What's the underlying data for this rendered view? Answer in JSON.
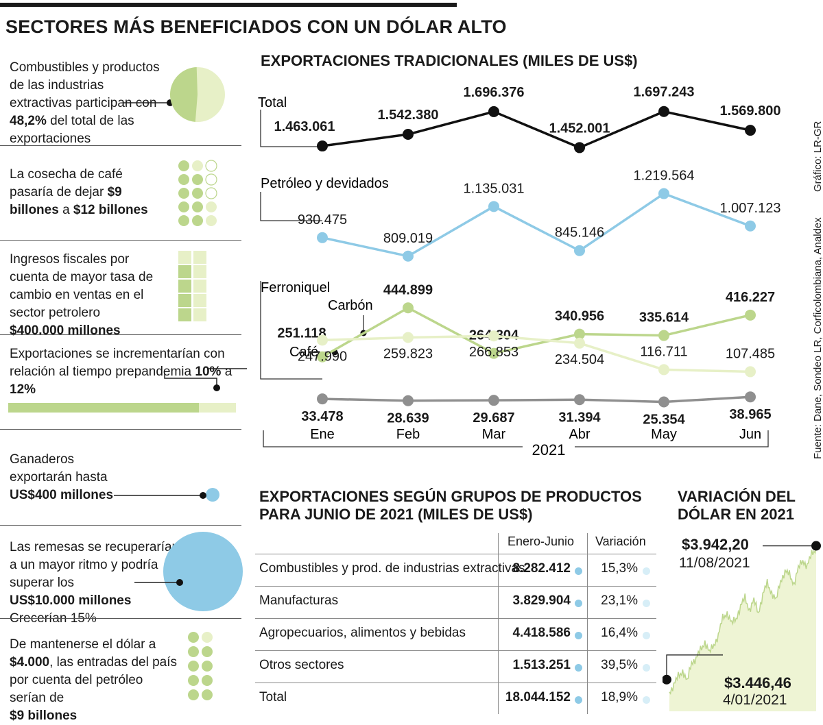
{
  "header": {
    "title": "SECTORES MÁS BENEFICIADOS CON UN DÓLAR ALTO"
  },
  "sidebar": {
    "s1": {
      "pre": "Combustibles y productos de las industrias extractivas participan con ",
      "bold": "48,2%",
      "post": " del total de las exportaciones",
      "share_pct": 48.2
    },
    "s2": {
      "pre": "La cosecha de café pasaría de dejar ",
      "bold1": "$9 billones",
      "mid": " a ",
      "bold2": "$12 billones"
    },
    "s3": {
      "pre": "Ingresos fiscales por cuenta de mayor tasa de cambio en ventas en el sector petrolero",
      "bold": "$400.000 millones"
    },
    "s4": {
      "pre": "Exportaciones se incrementarían con relación al tiempo prepandemia ",
      "bold1": "10%",
      "mid": " a ",
      "bold2": "12%"
    },
    "s5": {
      "pre": "Ganaderos exportarán hasta",
      "bold": "US$400 millones"
    },
    "s6": {
      "pre": "Las remesas se recuperarían a un mayor ritmo y podría superar los",
      "bold": "US$10.000 millones",
      "post": "Crecerían 15%"
    },
    "s7": {
      "pre1": "De mantenerse el dólar a ",
      "bold1": "$4.000",
      "pre2": ", las entradas del país por cuenta del petróleo serían de",
      "bold2": "$9 billones"
    }
  },
  "chart_data": [
    {
      "type": "line",
      "title": "EXPORTACIONES TRADICIONALES (MILES DE US$)",
      "categories": [
        "Ene",
        "Feb",
        "Mar",
        "Abr",
        "May",
        "Jun"
      ],
      "xlabel": "2021",
      "series": [
        {
          "name": "Total",
          "values": [
            1463061,
            1542380,
            1696376,
            1452001,
            1697243,
            1569800
          ],
          "labels": [
            "1.463.061",
            "1.542.380",
            "1.696.376",
            "1.452.001",
            "1.697.243",
            "1.569.800"
          ],
          "color": "#111111"
        },
        {
          "name": "Petróleo y devidados",
          "values": [
            930475,
            809019,
            1135031,
            845146,
            1219564,
            1007123
          ],
          "labels": [
            "930.475",
            "809.019",
            "1.135.031",
            "845.146",
            "1.219.564",
            "1.007.123"
          ],
          "color": "#8ecae6"
        },
        {
          "name": "Carbón",
          "values": [
            251118,
            444899,
            264804,
            340956,
            335614,
            416227
          ],
          "labels": [
            "251.118",
            "444.899",
            "264.804",
            "340.956",
            "335.614",
            "416.227"
          ],
          "color": "#bcd68c"
        },
        {
          "name": "Café",
          "values": [
            247990,
            259823,
            266853,
            234504,
            116711,
            107485
          ],
          "labels": [
            "247.990",
            "259.823",
            "266.853",
            "234.504",
            "116.711",
            "107.485"
          ],
          "color": "#e7f0c7"
        },
        {
          "name": "Ferroniquel",
          "values": [
            33478,
            28639,
            29687,
            31394,
            25354,
            38965
          ],
          "labels": [
            "33.478",
            "28.639",
            "29.687",
            "31.394",
            "25.354",
            "38.965"
          ],
          "color": "#8f8f8f"
        }
      ]
    },
    {
      "type": "table",
      "title": "EXPORTACIONES SEGÚN GRUPOS DE PRODUCTOS PARA JUNIO DE 2021 (MILES DE US$)",
      "columns": [
        "Enero-Junio",
        "Variación"
      ],
      "rows": [
        {
          "name": "Combustibles y prod. de industrias extractivas",
          "value": "8.282.412",
          "var": "15,3%"
        },
        {
          "name": "Manufacturas",
          "value": "3.829.904",
          "var": "23,1%"
        },
        {
          "name": "Agropecuarios, alimentos y bebidas",
          "value": "4.418.586",
          "var": "16,4%"
        },
        {
          "name": "Otros sectores",
          "value": "1.513.251",
          "var": "39,5%"
        },
        {
          "name": "Total",
          "value": "18.044.152",
          "var": "18,9%"
        }
      ]
    },
    {
      "type": "area",
      "title": "VARIACIÓN DEL DÓLAR EN 2021",
      "start": {
        "value": 3446.46,
        "label": "$3.446,46",
        "date": "4/01/2021"
      },
      "end": {
        "value": 3942.2,
        "label": "$3.942,20",
        "date": "11/08/2021"
      },
      "ylim": [
        3380,
        3960
      ],
      "values": [
        3446.46,
        3470,
        3500,
        3520,
        3480,
        3550,
        3560,
        3590,
        3620,
        3580,
        3610,
        3640,
        3700,
        3720,
        3680,
        3700,
        3740,
        3770,
        3730,
        3760,
        3720,
        3780,
        3820,
        3790,
        3760,
        3830,
        3860,
        3850,
        3820,
        3870,
        3900,
        3880,
        3920,
        3942.2
      ]
    }
  ],
  "source": {
    "credit": "Gráfico: LR-GR",
    "fuente": "Fuente: Dane, Sondeo LR, Corficolombiana, Analdex"
  }
}
